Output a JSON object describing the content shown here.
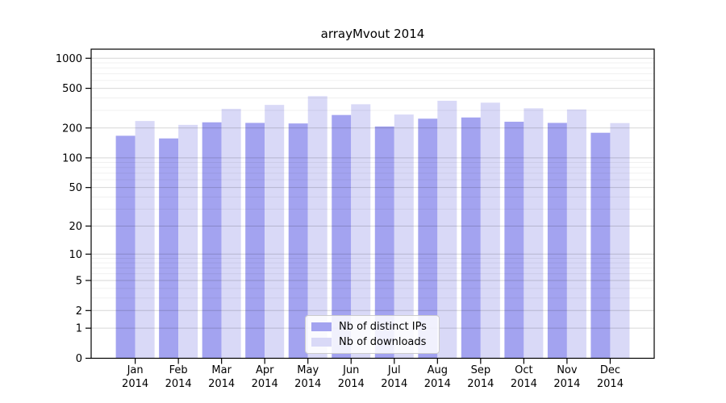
{
  "chart_data": {
    "type": "bar",
    "title": "arrayMvout 2014",
    "categories": [
      "Jan",
      "Feb",
      "Mar",
      "Apr",
      "May",
      "Jun",
      "Jul",
      "Aug",
      "Sep",
      "Oct",
      "Nov",
      "Dec"
    ],
    "x_year": "2014",
    "series": [
      {
        "name": "Nb of distinct IPs",
        "color": "#a3a3f0",
        "values": [
          167,
          157,
          228,
          225,
          222,
          270,
          207,
          248,
          255,
          231,
          225,
          179
        ]
      },
      {
        "name": "Nb of downloads",
        "color": "#d9d9f7",
        "values": [
          235,
          215,
          311,
          341,
          417,
          346,
          273,
          375,
          359,
          315,
          307,
          224
        ]
      }
    ],
    "y_scale": "log10(1+x)",
    "y_ticks": [
      0,
      1,
      2,
      5,
      10,
      20,
      50,
      100,
      200,
      500,
      1000
    ],
    "y_minor_ticks": [
      3,
      4,
      6,
      7,
      8,
      9,
      30,
      40,
      60,
      70,
      80,
      90,
      300,
      400,
      600,
      700,
      800,
      900
    ],
    "ylim": [
      0,
      1233
    ],
    "xlabel": "",
    "ylabel": "",
    "grid": "major+minor",
    "legend_position": "lower-center"
  },
  "colors": {
    "axis": "#000000",
    "grid_major": "rgba(0,0,0,0.16)",
    "grid_minor": "rgba(0,0,0,0.06)",
    "legend_border": "#cccccc"
  }
}
